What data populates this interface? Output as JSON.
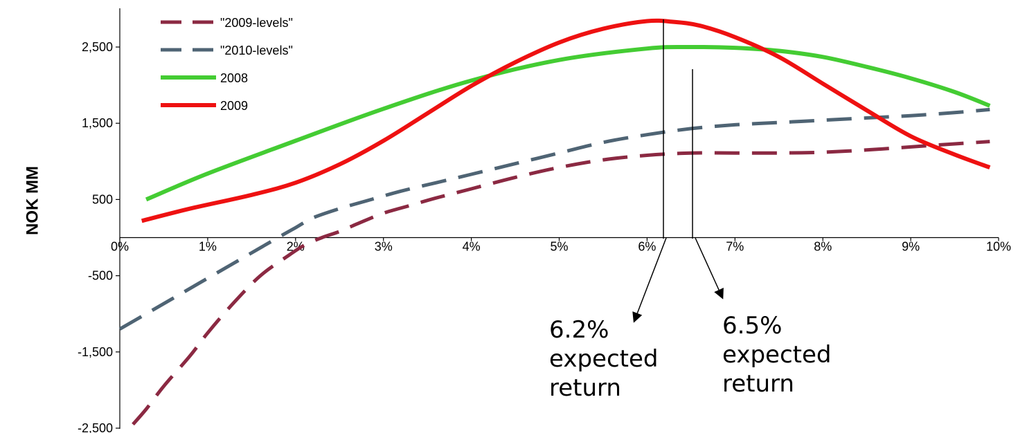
{
  "chart_data": {
    "type": "line",
    "title": "",
    "xlabel": "",
    "ylabel": "NOK MM",
    "xlim": [
      0,
      10
    ],
    "ylim": [
      -2500,
      3000
    ],
    "x_ticks": [
      0,
      1,
      2,
      3,
      4,
      5,
      6,
      7,
      8,
      9,
      10
    ],
    "x_tick_labels": [
      "0%",
      "1%",
      "2%",
      "3%",
      "4%",
      "5%",
      "6%",
      "7%",
      "8%",
      "9%",
      "10%"
    ],
    "y_ticks": [
      -2500,
      -1500,
      -500,
      500,
      1500,
      2500
    ],
    "y_tick_labels": [
      "-2,500",
      "-1,500",
      "-500",
      "500",
      "1,500",
      "2,500"
    ],
    "grid": false,
    "legend_position": "top-left",
    "series": [
      {
        "name": "\"2009-levels\"",
        "color": "#8B2942",
        "style": "dashed",
        "x": [
          0.15,
          0.3,
          0.5,
          0.8,
          1.0,
          1.3,
          1.6,
          1.9,
          2.1,
          2.3,
          2.5,
          2.7,
          3.0,
          3.3,
          3.6,
          4.0,
          4.5,
          5.0,
          5.5,
          6.0,
          6.5,
          7.0,
          7.5,
          8.0,
          8.5,
          9.0,
          9.5,
          9.9
        ],
        "y": [
          -2450,
          -2250,
          -1950,
          -1550,
          -1250,
          -850,
          -500,
          -250,
          -100,
          0,
          80,
          180,
          320,
          420,
          520,
          640,
          790,
          920,
          1020,
          1080,
          1110,
          1110,
          1110,
          1120,
          1150,
          1190,
          1230,
          1260
        ]
      },
      {
        "name": "\"2010-levels\"",
        "color": "#4F6474",
        "style": "dashed",
        "x": [
          0.0,
          0.3,
          0.6,
          0.9,
          1.2,
          1.5,
          1.8,
          2.0,
          2.2,
          2.5,
          2.8,
          3.2,
          3.6,
          4.0,
          4.5,
          5.0,
          5.5,
          6.0,
          6.5,
          7.0,
          7.5,
          8.0,
          8.5,
          9.0,
          9.5,
          9.9
        ],
        "y": [
          -1200,
          -1000,
          -800,
          -600,
          -400,
          -200,
          0,
          130,
          260,
          380,
          480,
          610,
          720,
          830,
          970,
          1110,
          1250,
          1350,
          1430,
          1480,
          1510,
          1540,
          1570,
          1600,
          1640,
          1680
        ]
      },
      {
        "name": "2008",
        "color": "#44CC33",
        "style": "solid",
        "x": [
          0.3,
          1.0,
          2.0,
          3.0,
          4.0,
          5.0,
          6.0,
          6.5,
          7.0,
          7.5,
          8.0,
          8.5,
          9.0,
          9.5,
          9.9
        ],
        "y": [
          500,
          840,
          1270,
          1690,
          2060,
          2330,
          2480,
          2500,
          2490,
          2450,
          2370,
          2240,
          2090,
          1910,
          1730
        ]
      },
      {
        "name": "2009",
        "color": "#EE1111",
        "style": "solid",
        "x": [
          0.25,
          0.8,
          1.5,
          2.0,
          2.5,
          3.0,
          3.5,
          4.0,
          4.5,
          5.0,
          5.5,
          6.0,
          6.3,
          6.6,
          7.0,
          7.5,
          8.0,
          8.5,
          9.0,
          9.5,
          9.9
        ],
        "y": [
          220,
          380,
          560,
          720,
          960,
          1270,
          1630,
          1990,
          2300,
          2560,
          2740,
          2840,
          2830,
          2780,
          2630,
          2370,
          2020,
          1670,
          1330,
          1090,
          920
        ]
      }
    ],
    "annotations": [
      {
        "lines": [
          "6.2%",
          "expected",
          "return"
        ],
        "x": 6.2
      },
      {
        "lines": [
          "6.5%",
          "expected",
          "return"
        ],
        "x": 6.5
      }
    ]
  }
}
